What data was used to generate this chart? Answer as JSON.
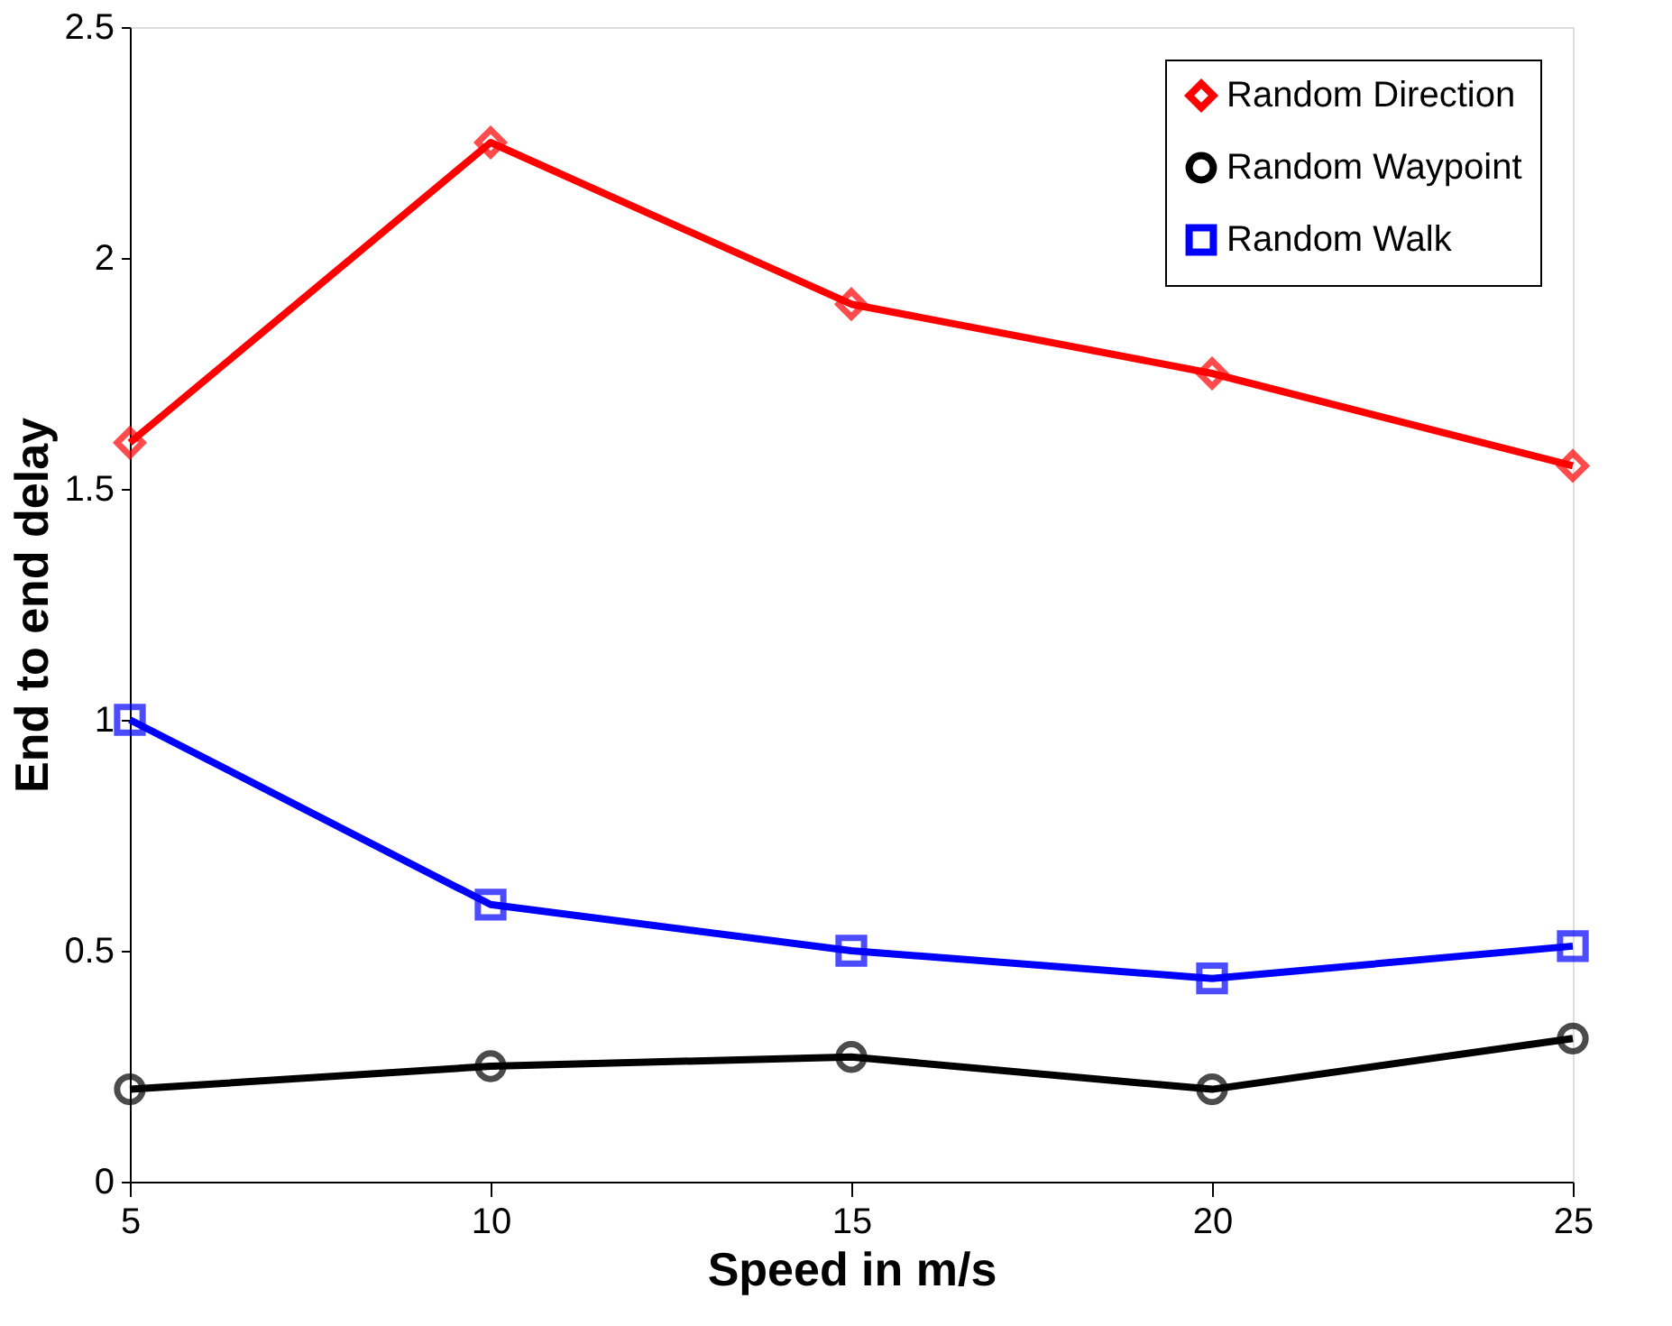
{
  "chart_data": {
    "type": "line",
    "xlabel": "Speed in m/s",
    "ylabel": "End to end delay",
    "x": [
      5,
      10,
      15,
      20,
      25
    ],
    "series": [
      {
        "name": "Random Direction",
        "color": "#ff0000",
        "marker": "diamond",
        "values": [
          1.6,
          2.25,
          1.9,
          1.75,
          1.55
        ]
      },
      {
        "name": "Random Waypoint",
        "color": "#000000",
        "marker": "circle",
        "values": [
          0.2,
          0.25,
          0.27,
          0.2,
          0.31
        ]
      },
      {
        "name": "Random Walk",
        "color": "#0000ff",
        "marker": "square",
        "values": [
          1.0,
          0.6,
          0.5,
          0.44,
          0.51
        ]
      }
    ],
    "xlim": [
      5,
      25
    ],
    "xticks": [
      5,
      10,
      15,
      20,
      25
    ],
    "ylim": [
      0,
      2.5
    ],
    "yticks": [
      0,
      0.5,
      1,
      1.5,
      2,
      2.5
    ],
    "grid": false,
    "legend": "top right",
    "line_style": "solid"
  }
}
